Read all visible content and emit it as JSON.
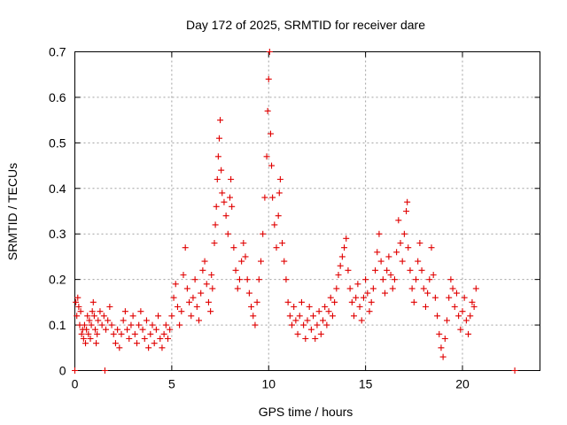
{
  "chart_data": {
    "type": "scatter",
    "title": "Day 172 of 2025, SRMTID for receiver dare",
    "xlabel": "GPS time / hours",
    "ylabel": "SRMTID / TECUs",
    "xlim": [
      0,
      24
    ],
    "ylim": [
      0,
      0.7
    ],
    "xticks": [
      0,
      5,
      10,
      15,
      20
    ],
    "xtick_labels": [
      "0",
      "5",
      "10",
      "15",
      "20"
    ],
    "yticks": [
      0,
      0.1,
      0.2,
      0.3,
      0.4,
      0.5,
      0.6,
      0.7
    ],
    "ytick_labels": [
      "0",
      "0.1",
      "0.2",
      "0.3",
      "0.4",
      "0.5",
      "0.6",
      "0.7"
    ],
    "grid": true,
    "marker": "plus",
    "color": "#e00000",
    "series": [
      {
        "name": "SRMTID",
        "points": [
          [
            0.0,
            0.0
          ],
          [
            1.55,
            0.0
          ],
          [
            22.7,
            0.0
          ],
          [
            0.05,
            0.15
          ],
          [
            0.1,
            0.12
          ],
          [
            0.15,
            0.16
          ],
          [
            0.2,
            0.14
          ],
          [
            0.25,
            0.1
          ],
          [
            0.3,
            0.13
          ],
          [
            0.35,
            0.08
          ],
          [
            0.4,
            0.09
          ],
          [
            0.45,
            0.07
          ],
          [
            0.5,
            0.1
          ],
          [
            0.55,
            0.06
          ],
          [
            0.6,
            0.09
          ],
          [
            0.65,
            0.12
          ],
          [
            0.7,
            0.08
          ],
          [
            0.75,
            0.11
          ],
          [
            0.8,
            0.07
          ],
          [
            0.85,
            0.1
          ],
          [
            0.9,
            0.13
          ],
          [
            0.95,
            0.15
          ],
          [
            1.0,
            0.12
          ],
          [
            1.05,
            0.09
          ],
          [
            1.1,
            0.06
          ],
          [
            1.15,
            0.08
          ],
          [
            1.2,
            0.11
          ],
          [
            1.3,
            0.13
          ],
          [
            1.4,
            0.1
          ],
          [
            1.5,
            0.12
          ],
          [
            1.6,
            0.09
          ],
          [
            1.7,
            0.11
          ],
          [
            1.8,
            0.14
          ],
          [
            1.9,
            0.1
          ],
          [
            2.0,
            0.08
          ],
          [
            2.1,
            0.06
          ],
          [
            2.2,
            0.09
          ],
          [
            2.3,
            0.05
          ],
          [
            2.4,
            0.08
          ],
          [
            2.5,
            0.11
          ],
          [
            2.6,
            0.13
          ],
          [
            2.7,
            0.09
          ],
          [
            2.8,
            0.07
          ],
          [
            2.9,
            0.1
          ],
          [
            3.0,
            0.12
          ],
          [
            3.1,
            0.08
          ],
          [
            3.2,
            0.06
          ],
          [
            3.3,
            0.1
          ],
          [
            3.4,
            0.13
          ],
          [
            3.5,
            0.09
          ],
          [
            3.6,
            0.07
          ],
          [
            3.7,
            0.11
          ],
          [
            3.8,
            0.05
          ],
          [
            3.9,
            0.08
          ],
          [
            4.0,
            0.1
          ],
          [
            4.1,
            0.06
          ],
          [
            4.2,
            0.09
          ],
          [
            4.3,
            0.12
          ],
          [
            4.4,
            0.07
          ],
          [
            4.5,
            0.05
          ],
          [
            4.6,
            0.08
          ],
          [
            4.7,
            0.1
          ],
          [
            4.8,
            0.07
          ],
          [
            4.9,
            0.09
          ],
          [
            5.0,
            0.12
          ],
          [
            5.1,
            0.16
          ],
          [
            5.2,
            0.19
          ],
          [
            5.3,
            0.14
          ],
          [
            5.4,
            0.1
          ],
          [
            5.5,
            0.13
          ],
          [
            5.6,
            0.21
          ],
          [
            5.7,
            0.27
          ],
          [
            5.8,
            0.18
          ],
          [
            5.9,
            0.15
          ],
          [
            6.0,
            0.12
          ],
          [
            6.1,
            0.16
          ],
          [
            6.2,
            0.2
          ],
          [
            6.3,
            0.14
          ],
          [
            6.4,
            0.11
          ],
          [
            6.5,
            0.17
          ],
          [
            6.6,
            0.22
          ],
          [
            6.7,
            0.24
          ],
          [
            6.8,
            0.19
          ],
          [
            6.9,
            0.15
          ],
          [
            7.0,
            0.13
          ],
          [
            7.05,
            0.21
          ],
          [
            7.1,
            0.18
          ],
          [
            7.2,
            0.28
          ],
          [
            7.25,
            0.32
          ],
          [
            7.3,
            0.36
          ],
          [
            7.35,
            0.42
          ],
          [
            7.4,
            0.47
          ],
          [
            7.45,
            0.51
          ],
          [
            7.5,
            0.55
          ],
          [
            7.55,
            0.44
          ],
          [
            7.6,
            0.39
          ],
          [
            7.7,
            0.37
          ],
          [
            7.8,
            0.34
          ],
          [
            7.9,
            0.3
          ],
          [
            8.0,
            0.38
          ],
          [
            8.05,
            0.42
          ],
          [
            8.1,
            0.36
          ],
          [
            8.2,
            0.27
          ],
          [
            8.3,
            0.22
          ],
          [
            8.4,
            0.18
          ],
          [
            8.5,
            0.2
          ],
          [
            8.6,
            0.24
          ],
          [
            8.7,
            0.28
          ],
          [
            8.8,
            0.25
          ],
          [
            8.9,
            0.2
          ],
          [
            9.0,
            0.17
          ],
          [
            9.1,
            0.14
          ],
          [
            9.2,
            0.12
          ],
          [
            9.3,
            0.1
          ],
          [
            9.4,
            0.15
          ],
          [
            9.5,
            0.2
          ],
          [
            9.6,
            0.24
          ],
          [
            9.7,
            0.3
          ],
          [
            9.8,
            0.38
          ],
          [
            9.9,
            0.47
          ],
          [
            9.95,
            0.57
          ],
          [
            10.0,
            0.64
          ],
          [
            10.05,
            0.7
          ],
          [
            10.1,
            0.52
          ],
          [
            10.15,
            0.45
          ],
          [
            10.2,
            0.38
          ],
          [
            10.3,
            0.32
          ],
          [
            10.4,
            0.27
          ],
          [
            10.5,
            0.34
          ],
          [
            10.55,
            0.39
          ],
          [
            10.6,
            0.42
          ],
          [
            10.7,
            0.28
          ],
          [
            10.8,
            0.24
          ],
          [
            10.9,
            0.2
          ],
          [
            11.0,
            0.15
          ],
          [
            11.1,
            0.12
          ],
          [
            11.2,
            0.1
          ],
          [
            11.3,
            0.14
          ],
          [
            11.4,
            0.11
          ],
          [
            11.5,
            0.08
          ],
          [
            11.6,
            0.12
          ],
          [
            11.7,
            0.15
          ],
          [
            11.8,
            0.1
          ],
          [
            11.9,
            0.07
          ],
          [
            12.0,
            0.11
          ],
          [
            12.1,
            0.14
          ],
          [
            12.2,
            0.09
          ],
          [
            12.3,
            0.12
          ],
          [
            12.4,
            0.07
          ],
          [
            12.5,
            0.1
          ],
          [
            12.6,
            0.13
          ],
          [
            12.7,
            0.08
          ],
          [
            12.8,
            0.11
          ],
          [
            12.9,
            0.14
          ],
          [
            13.0,
            0.1
          ],
          [
            13.1,
            0.13
          ],
          [
            13.2,
            0.16
          ],
          [
            13.3,
            0.12
          ],
          [
            13.4,
            0.15
          ],
          [
            13.5,
            0.18
          ],
          [
            13.6,
            0.21
          ],
          [
            13.7,
            0.23
          ],
          [
            13.8,
            0.25
          ],
          [
            13.9,
            0.27
          ],
          [
            14.0,
            0.29
          ],
          [
            14.1,
            0.22
          ],
          [
            14.2,
            0.18
          ],
          [
            14.3,
            0.15
          ],
          [
            14.4,
            0.12
          ],
          [
            14.5,
            0.16
          ],
          [
            14.6,
            0.19
          ],
          [
            14.7,
            0.14
          ],
          [
            14.8,
            0.11
          ],
          [
            14.9,
            0.16
          ],
          [
            15.0,
            0.2
          ],
          [
            15.1,
            0.17
          ],
          [
            15.2,
            0.13
          ],
          [
            15.3,
            0.15
          ],
          [
            15.4,
            0.18
          ],
          [
            15.5,
            0.22
          ],
          [
            15.6,
            0.26
          ],
          [
            15.7,
            0.3
          ],
          [
            15.8,
            0.24
          ],
          [
            15.9,
            0.2
          ],
          [
            16.0,
            0.17
          ],
          [
            16.1,
            0.22
          ],
          [
            16.2,
            0.25
          ],
          [
            16.3,
            0.21
          ],
          [
            16.4,
            0.18
          ],
          [
            16.5,
            0.2
          ],
          [
            16.6,
            0.26
          ],
          [
            16.7,
            0.33
          ],
          [
            16.8,
            0.28
          ],
          [
            16.9,
            0.24
          ],
          [
            17.0,
            0.3
          ],
          [
            17.1,
            0.35
          ],
          [
            17.15,
            0.37
          ],
          [
            17.2,
            0.27
          ],
          [
            17.3,
            0.22
          ],
          [
            17.4,
            0.18
          ],
          [
            17.5,
            0.15
          ],
          [
            17.6,
            0.2
          ],
          [
            17.7,
            0.24
          ],
          [
            17.8,
            0.28
          ],
          [
            17.9,
            0.22
          ],
          [
            18.0,
            0.18
          ],
          [
            18.1,
            0.14
          ],
          [
            18.2,
            0.17
          ],
          [
            18.3,
            0.2
          ],
          [
            18.4,
            0.27
          ],
          [
            18.5,
            0.21
          ],
          [
            18.6,
            0.16
          ],
          [
            18.7,
            0.12
          ],
          [
            18.8,
            0.08
          ],
          [
            18.9,
            0.05
          ],
          [
            19.0,
            0.03
          ],
          [
            19.1,
            0.07
          ],
          [
            19.2,
            0.11
          ],
          [
            19.3,
            0.16
          ],
          [
            19.4,
            0.2
          ],
          [
            19.5,
            0.18
          ],
          [
            19.6,
            0.14
          ],
          [
            19.7,
            0.17
          ],
          [
            19.8,
            0.12
          ],
          [
            19.9,
            0.09
          ],
          [
            20.0,
            0.13
          ],
          [
            20.1,
            0.16
          ],
          [
            20.2,
            0.11
          ],
          [
            20.3,
            0.08
          ],
          [
            20.4,
            0.12
          ],
          [
            20.5,
            0.15
          ],
          [
            20.6,
            0.14
          ],
          [
            20.7,
            0.18
          ]
        ]
      }
    ]
  }
}
